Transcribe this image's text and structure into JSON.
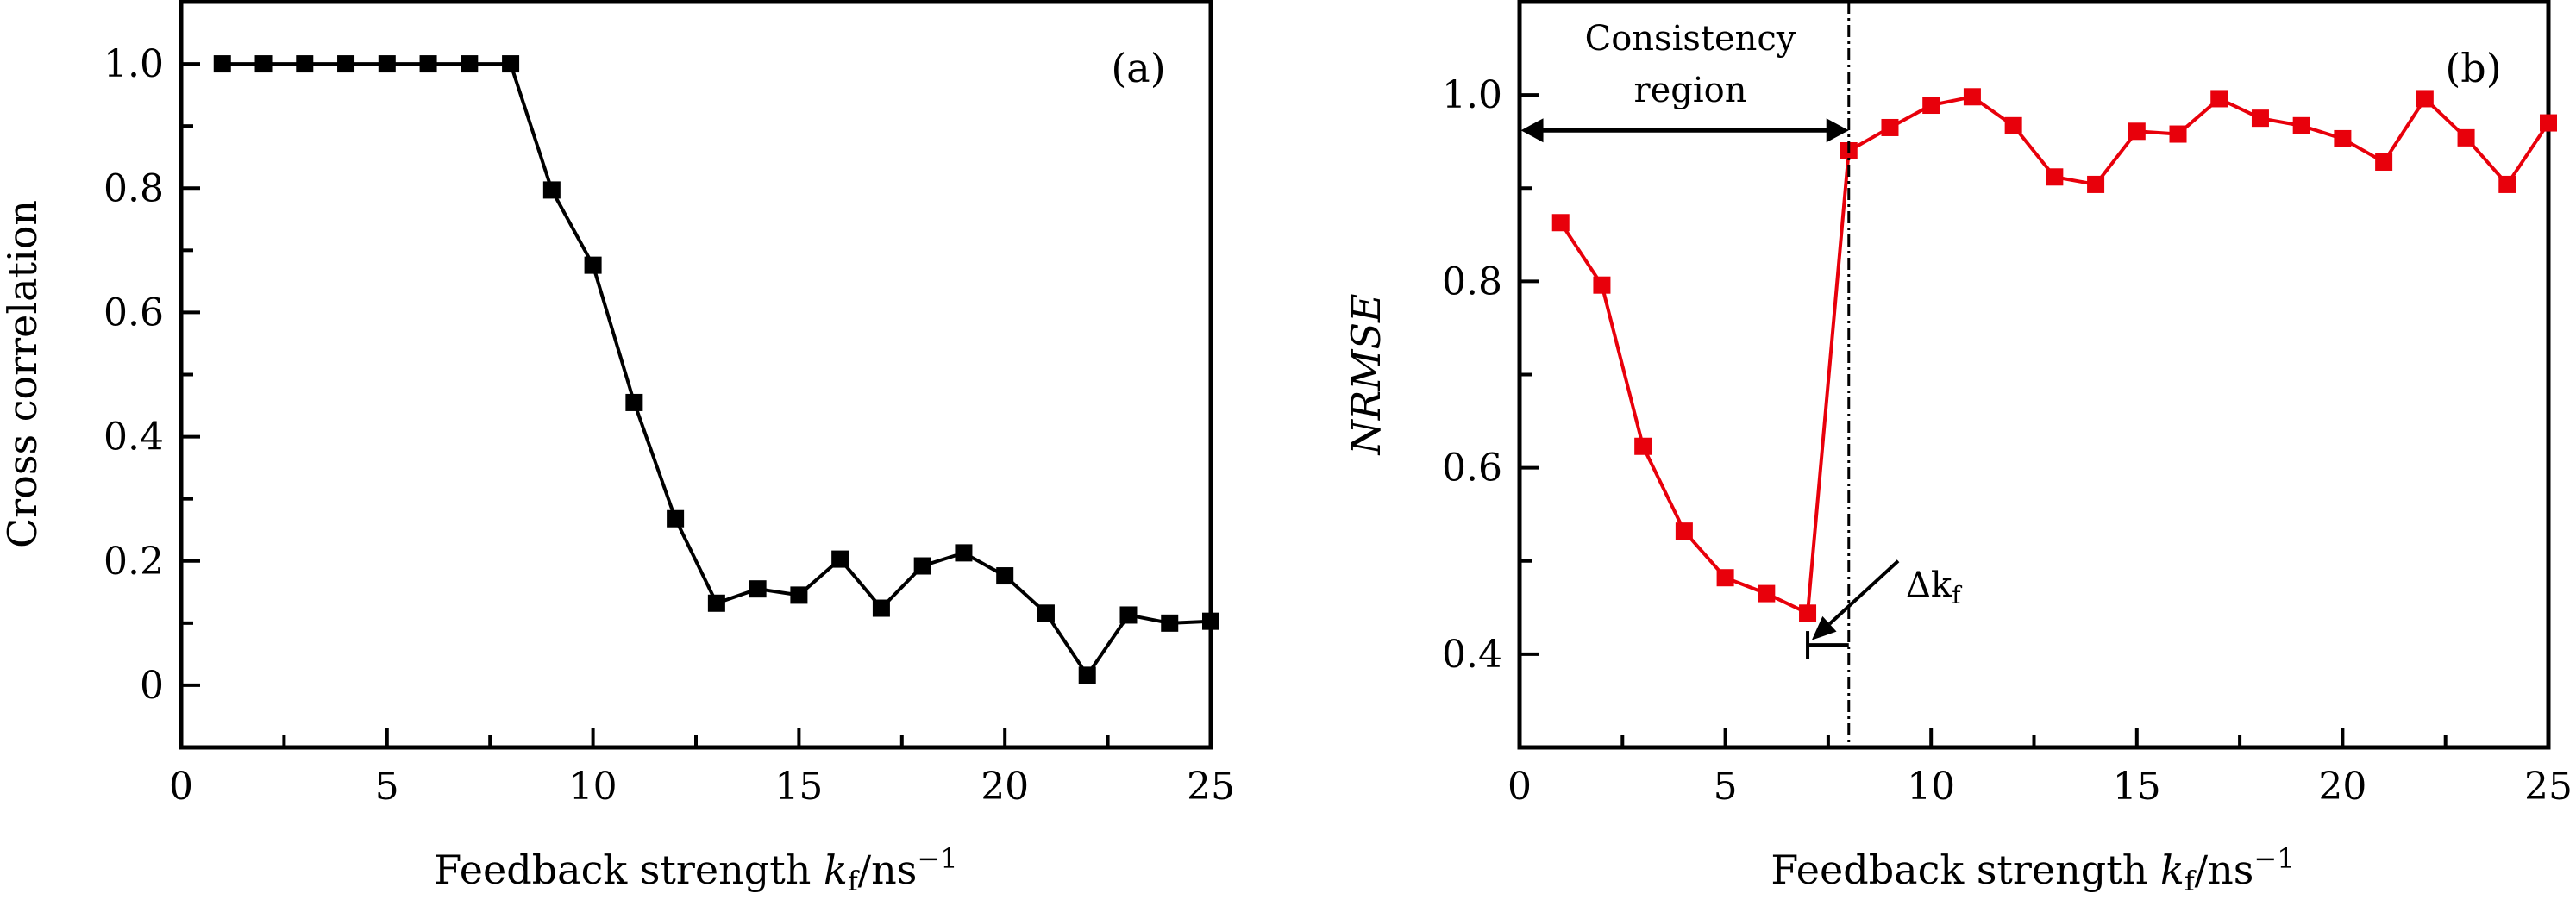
{
  "chart_data": [
    {
      "type": "line",
      "panel_label": "(a)",
      "xlabel": "Feedback strength k_f/ns^-1",
      "xlabel_parts": {
        "main": "Feedback strength ",
        "var": "k",
        "sub": "f",
        "unit": "/ns",
        "sup": "−1"
      },
      "ylabel": "Cross correlation",
      "xlim": [
        0,
        25
      ],
      "ylim": [
        -0.1,
        1.1
      ],
      "xticks": [
        0,
        5,
        10,
        15,
        20,
        25
      ],
      "xtick_labels": [
        "0",
        "5",
        "10",
        "15",
        "20",
        "25"
      ],
      "xminor_step": 2.5,
      "yticks": [
        0,
        0.2,
        0.4,
        0.6,
        0.8,
        1.0
      ],
      "ytick_labels": [
        "0",
        "0.2",
        "0.4",
        "0.6",
        "0.8",
        "1.0"
      ],
      "yminor_step": 0.1,
      "grid": false,
      "series": [
        {
          "name": "Cross correlation",
          "color": "#000000",
          "marker": "square",
          "x": [
            1,
            2,
            3,
            4,
            5,
            6,
            7,
            8,
            9,
            10,
            11,
            12,
            13,
            14,
            15,
            16,
            17,
            18,
            19,
            20,
            21,
            22,
            23,
            24,
            25
          ],
          "y": [
            1.0,
            1.0,
            1.0,
            1.0,
            1.0,
            1.0,
            1.0,
            1.0,
            0.797,
            0.676,
            0.455,
            0.268,
            0.132,
            0.155,
            0.145,
            0.203,
            0.124,
            0.192,
            0.213,
            0.176,
            0.116,
            0.016,
            0.113,
            0.1,
            0.103
          ]
        }
      ]
    },
    {
      "type": "line",
      "panel_label": "(b)",
      "xlabel": "Feedback strength k_f/ns^-1",
      "xlabel_parts": {
        "main": "Feedback strength ",
        "var": "k",
        "sub": "f",
        "unit": "/ns",
        "sup": "−1"
      },
      "ylabel": "NRMSE",
      "xlim": [
        0,
        25
      ],
      "ylim": [
        0.3,
        1.1
      ],
      "xticks": [
        0,
        5,
        10,
        15,
        20,
        25
      ],
      "xtick_labels": [
        "0",
        "5",
        "10",
        "15",
        "20",
        "25"
      ],
      "xminor_step": 2.5,
      "yticks": [
        0.4,
        0.6,
        0.8,
        1.0
      ],
      "ytick_labels": [
        "0.4",
        "0.6",
        "0.8",
        "1.0"
      ],
      "yminor_step": 0.1,
      "grid": false,
      "series": [
        {
          "name": "NRMSE",
          "color": "#e8000b",
          "marker": "square",
          "x": [
            1,
            2,
            3,
            4,
            5,
            6,
            7,
            8,
            9,
            10,
            11,
            12,
            13,
            14,
            15,
            16,
            17,
            18,
            19,
            20,
            21,
            22,
            23,
            24,
            25
          ],
          "y": [
            0.863,
            0.796,
            0.623,
            0.532,
            0.482,
            0.465,
            0.444,
            0.94,
            0.965,
            0.989,
            0.998,
            0.967,
            0.912,
            0.904,
            0.961,
            0.958,
            0.996,
            0.975,
            0.967,
            0.953,
            0.928,
            0.996,
            0.954,
            0.904,
            0.97
          ]
        }
      ],
      "annotations": {
        "vline_x": 8,
        "region_text_line1": "Consistency",
        "region_text_line2": "region",
        "region_arrow": {
          "x_from": 0.2,
          "x_to": 8,
          "y": 0.962
        },
        "delta_label": "Δk",
        "delta_sub": "f",
        "delta_bracket": {
          "x_from": 7,
          "x_to": 8,
          "y": 0.41
        },
        "delta_arrow": {
          "from": [
            9.2,
            0.5
          ],
          "to": [
            7.1,
            0.415
          ]
        }
      }
    }
  ]
}
